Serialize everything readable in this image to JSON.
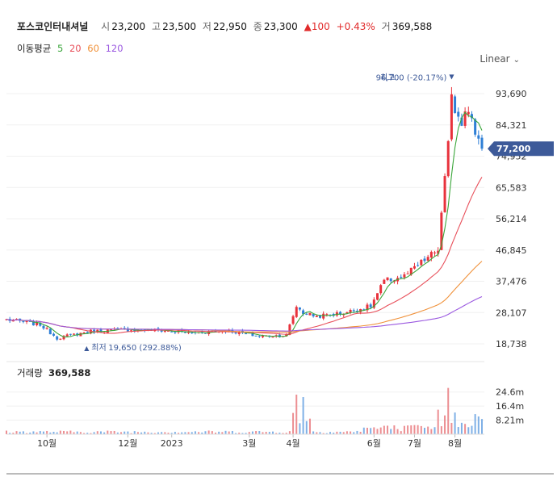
{
  "header": {
    "name": "포스코인터내셔널",
    "open_label": "시",
    "open": "23,200",
    "high_label": "고",
    "high": "23,500",
    "low_label": "저",
    "low": "22,950",
    "close_label": "종",
    "close": "23,300",
    "change": "▲100",
    "change_pct": "+0.43%",
    "volume_label": "거",
    "volume": "369,588"
  },
  "moving_average": {
    "label": "이동평균",
    "periods": [
      "5",
      "20",
      "60",
      "120"
    ],
    "colors": [
      "#3aa63a",
      "#e8505b",
      "#f0913a",
      "#9b59e0"
    ]
  },
  "scale_selector": {
    "label": "Linear"
  },
  "colors": {
    "up": "#e8323c",
    "down": "#2f7fd6",
    "badge": "#3d5a99"
  },
  "chart_data": {
    "type": "candlestick",
    "price_ticks": [
      93690,
      84321,
      74952,
      65583,
      56214,
      46845,
      37476,
      28107,
      18738
    ],
    "price_tick_labels": [
      "93,690",
      "84,321",
      "74,952",
      "65,583",
      "56,214",
      "46,845",
      "37,476",
      "28,107",
      "18,738"
    ],
    "price_range": [
      15500,
      101500
    ],
    "current_price": 77200,
    "current_price_label": "77,200",
    "high_annotation": {
      "label": "최고",
      "value": 96700,
      "text": "96,700 (-20.17%)",
      "marker": "▼"
    },
    "low_annotation": {
      "label": "최저",
      "value": 19650,
      "text": "19,650 (292.88%)",
      "marker": "▲"
    },
    "x_labels": [
      "10월",
      "12월",
      "2023",
      "3월",
      "4월",
      "6월",
      "7월",
      "8월"
    ],
    "x_label_index": [
      12,
      36,
      49,
      72,
      85,
      109,
      121,
      133
    ],
    "price_anchor_index": [
      0,
      10,
      15,
      25,
      35,
      45,
      55,
      65,
      75,
      83,
      86,
      88,
      92,
      100,
      104,
      108,
      112,
      118,
      123,
      128,
      131,
      132,
      133,
      135,
      136,
      138,
      140,
      141
    ],
    "price_anchor_value": [
      26000,
      24500,
      20500,
      22500,
      23000,
      22800,
      22000,
      22800,
      21000,
      21300,
      30000,
      28000,
      27000,
      28000,
      29000,
      30000,
      37500,
      39000,
      43000,
      47000,
      78000,
      95000,
      89000,
      86000,
      90000,
      85000,
      80000,
      77200
    ],
    "volume_label": "거래량",
    "volume_value": "369,588",
    "volume_ticks": [
      "24.6m",
      "16.4m",
      "8.21m"
    ],
    "volume_tick_value": [
      24.6,
      16.4,
      8.21
    ],
    "volume_max": 32
  }
}
